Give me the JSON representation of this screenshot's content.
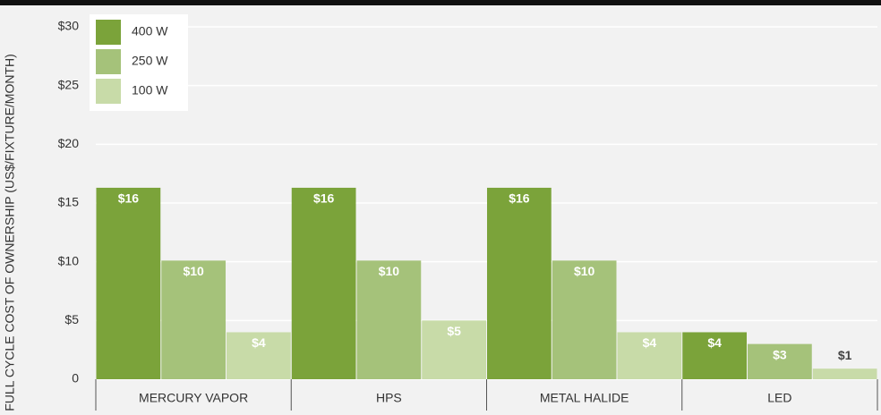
{
  "chart_data": {
    "type": "bar",
    "y_label": "FULL CYCLE COST OF OWNERSHIP (US$/FIXTURE/MONTH)",
    "categories": [
      "MERCURY VAPOR",
      "HPS",
      "METAL HALIDE",
      "LED"
    ],
    "series": [
      {
        "name": "400 W",
        "color": "#7ba33a",
        "values": [
          16.3,
          16.3,
          16.3,
          4
        ],
        "value_labels": [
          "$16",
          "$16",
          "$16",
          "$4"
        ]
      },
      {
        "name": "250 W",
        "color": "#a5c27a",
        "values": [
          10.1,
          10.1,
          10.1,
          3
        ],
        "value_labels": [
          "$10",
          "$10",
          "$10",
          "$3"
        ]
      },
      {
        "name": "100 W",
        "color": "#c8dba8",
        "values": [
          4,
          5,
          4,
          0.9
        ],
        "value_labels": [
          "$4",
          "$5",
          "$4",
          "$1"
        ]
      }
    ],
    "ylim": [
      0,
      30
    ],
    "yticks": [
      0,
      {
        "value": 5,
        "label": "$5"
      },
      {
        "value": 10,
        "label": "$10"
      },
      {
        "value": 15,
        "label": "$15"
      },
      {
        "value": 20,
        "label": "$20"
      },
      {
        "value": 25,
        "label": "$25"
      },
      {
        "value": 30,
        "label": "$30"
      }
    ],
    "grid": true,
    "legend": "top-left"
  }
}
